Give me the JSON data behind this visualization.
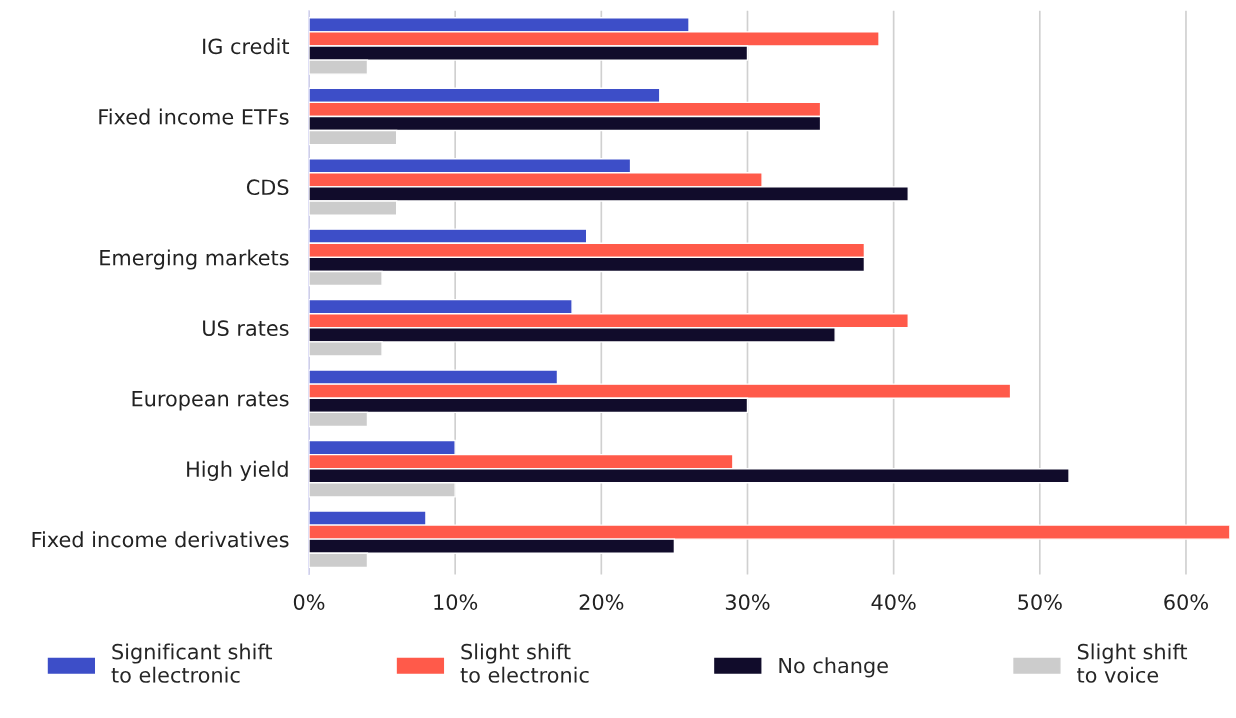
{
  "chart_data": {
    "type": "bar",
    "orientation": "horizontal",
    "categories": [
      "IG credit",
      "Fixed income ETFs",
      "CDS",
      "Emerging markets",
      "US rates",
      "European rates",
      "High yield",
      "Fixed income derivatives"
    ],
    "series": [
      {
        "name": "Significant shift\nto electronic",
        "color": "#3d4ec8",
        "values": [
          26,
          24,
          22,
          19,
          18,
          17,
          10,
          8
        ]
      },
      {
        "name": "Slight shift\nto electronic",
        "color": "#ff5a4a",
        "values": [
          39,
          35,
          31,
          38,
          41,
          48,
          29,
          63
        ]
      },
      {
        "name": "No change",
        "color": "#110c2b",
        "values": [
          30,
          35,
          41,
          38,
          36,
          30,
          52,
          25
        ]
      },
      {
        "name": "Slight shift\nto voice",
        "color": "#cccccc",
        "values": [
          4,
          6,
          6,
          5,
          5,
          4,
          10,
          4
        ]
      }
    ],
    "xlim": [
      0,
      63
    ],
    "xticks": [
      {
        "value": 0,
        "label": "0%"
      },
      {
        "value": 10,
        "label": "10%"
      },
      {
        "value": 20,
        "label": "20%"
      },
      {
        "value": 30,
        "label": "30%"
      },
      {
        "value": 40,
        "label": "40%"
      },
      {
        "value": 50,
        "label": "50%"
      },
      {
        "value": 60,
        "label": "60%"
      }
    ],
    "grid": "x",
    "legend": "bottom"
  }
}
